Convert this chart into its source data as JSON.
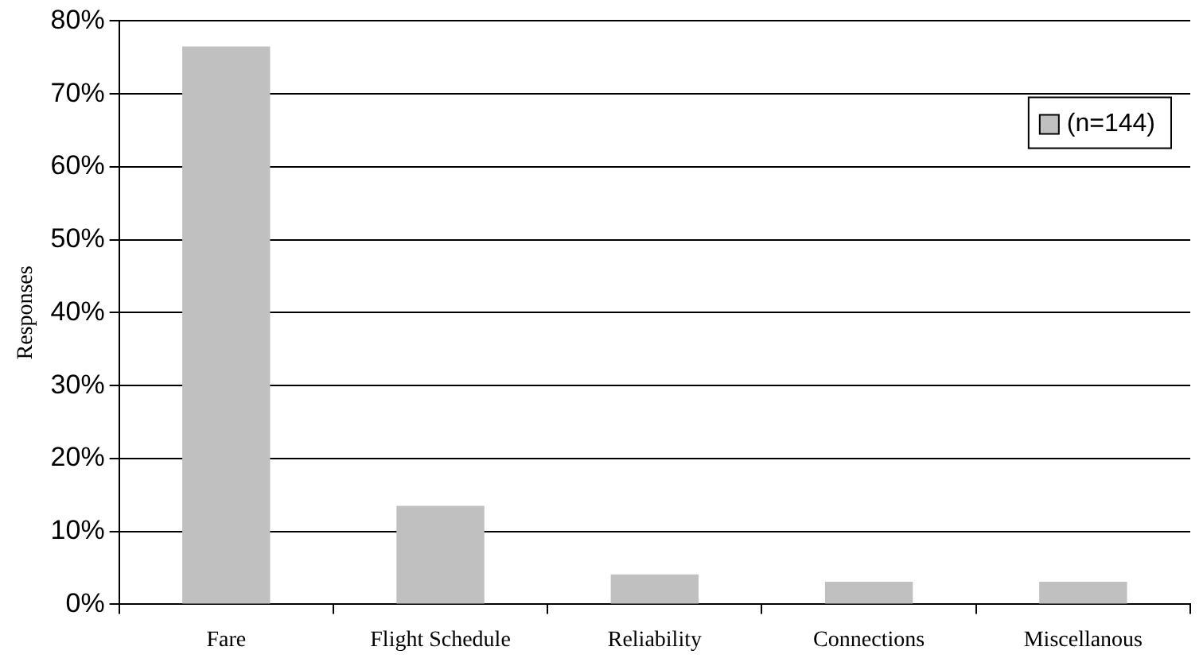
{
  "chart_data": {
    "type": "bar",
    "ylabel": "Responses",
    "categories": [
      "Fare",
      "Flight Schedule",
      "Reliability",
      "Connections",
      "Miscellanous"
    ],
    "series": [
      {
        "name": "(n=144)",
        "color": "#c0c0c0",
        "values": [
          76.5,
          13.5,
          4.1,
          3.1,
          3.1
        ]
      }
    ],
    "ylim": [
      0,
      80
    ],
    "yticks": [
      {
        "value": 0,
        "label": "0%"
      },
      {
        "value": 10,
        "label": "10%"
      },
      {
        "value": 20,
        "label": "20%"
      },
      {
        "value": 30,
        "label": "30%"
      },
      {
        "value": 40,
        "label": "40%"
      },
      {
        "value": 50,
        "label": "50%"
      },
      {
        "value": 60,
        "label": "60%"
      },
      {
        "value": 70,
        "label": "70%"
      },
      {
        "value": 80,
        "label": "80%"
      }
    ],
    "grid": "y",
    "legend": "top right"
  }
}
